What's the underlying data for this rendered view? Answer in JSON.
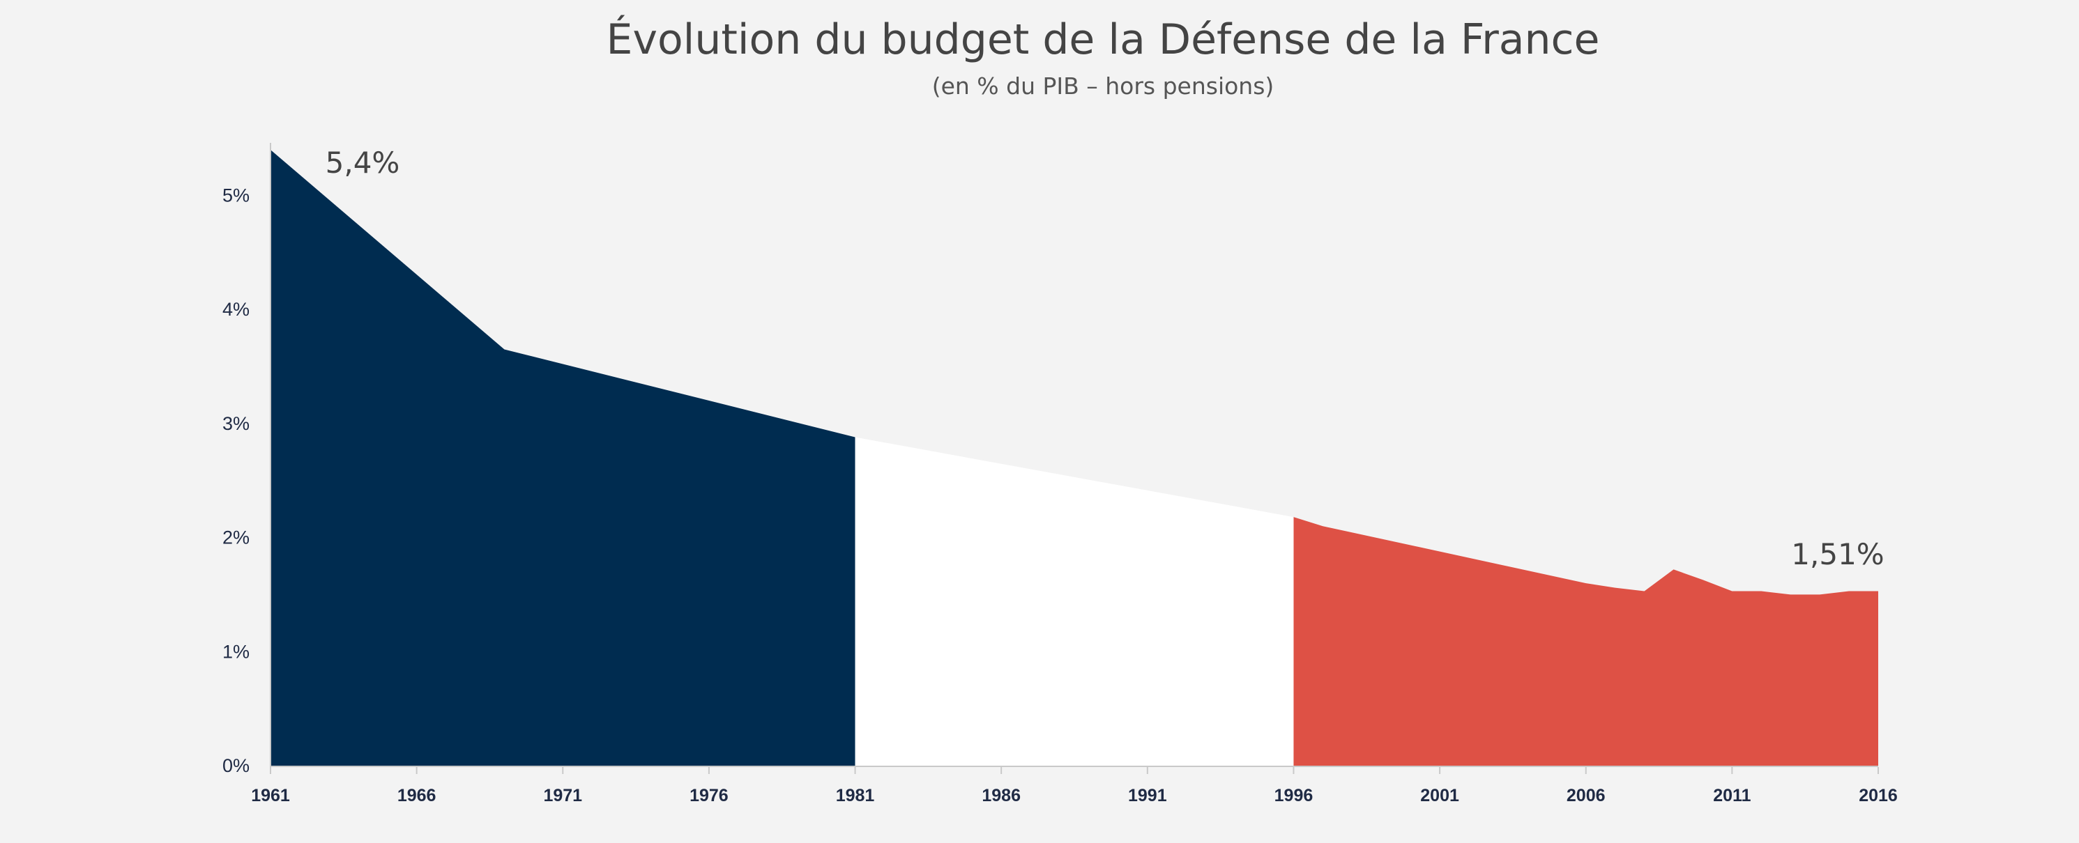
{
  "chart_data": {
    "type": "area",
    "title": "Évolution du budget de la Défense de la France",
    "subtitle": "(en % du PIB – hors pensions)",
    "xlabel": "",
    "ylabel": "",
    "xlim": [
      1961,
      2016
    ],
    "ylim": [
      0,
      5.4
    ],
    "x_ticks": [
      {
        "value": 1961,
        "label": "1961"
      },
      {
        "value": 1966,
        "label": "1966"
      },
      {
        "value": 1971,
        "label": "1971"
      },
      {
        "value": 1976,
        "label": "1976"
      },
      {
        "value": 1981,
        "label": "1981"
      },
      {
        "value": 1986,
        "label": "1986"
      },
      {
        "value": 1991,
        "label": "1991"
      },
      {
        "value": 1996,
        "label": "1996"
      },
      {
        "value": 2001,
        "label": "2001"
      },
      {
        "value": 2006,
        "label": "2006"
      },
      {
        "value": 2011,
        "label": "2011"
      },
      {
        "value": 2016,
        "label": "2016"
      }
    ],
    "y_ticks": [
      {
        "value": 0,
        "label": "0%"
      },
      {
        "value": 1,
        "label": "1%"
      },
      {
        "value": 2,
        "label": "2%"
      },
      {
        "value": 3,
        "label": "3%"
      },
      {
        "value": 4,
        "label": "4%"
      },
      {
        "value": 5,
        "label": "5%"
      }
    ],
    "grid": false,
    "points": [
      {
        "x": 1961,
        "y": 5.4
      },
      {
        "x": 1969,
        "y": 3.65
      },
      {
        "x": 1981,
        "y": 2.88
      },
      {
        "x": 1996,
        "y": 2.18
      },
      {
        "x": 1997,
        "y": 2.1
      },
      {
        "x": 2006,
        "y": 1.6
      },
      {
        "x": 2007,
        "y": 1.56
      },
      {
        "x": 2008,
        "y": 1.53
      },
      {
        "x": 2009,
        "y": 1.72
      },
      {
        "x": 2010,
        "y": 1.63
      },
      {
        "x": 2011,
        "y": 1.53
      },
      {
        "x": 2012,
        "y": 1.53
      },
      {
        "x": 2013,
        "y": 1.5
      },
      {
        "x": 2014,
        "y": 1.5
      },
      {
        "x": 2015,
        "y": 1.53
      },
      {
        "x": 2016,
        "y": 1.53
      }
    ],
    "segments": [
      {
        "from": 1961,
        "to": 1981,
        "color": "#002c50"
      },
      {
        "from": 1981,
        "to": 1996,
        "color": "#ffffff"
      },
      {
        "from": 1996,
        "to": 2016,
        "color": "#de5145"
      }
    ],
    "annotations": [
      {
        "x": 1963,
        "y": 5.4,
        "label": "5,4%",
        "anchor": "middle"
      },
      {
        "x": 2014,
        "y": 1.86,
        "label": "1,51%",
        "anchor": "middle"
      }
    ]
  },
  "colors": {
    "background": "#f3f3f3",
    "axis": "#1f2a44",
    "text": "#444444"
  }
}
